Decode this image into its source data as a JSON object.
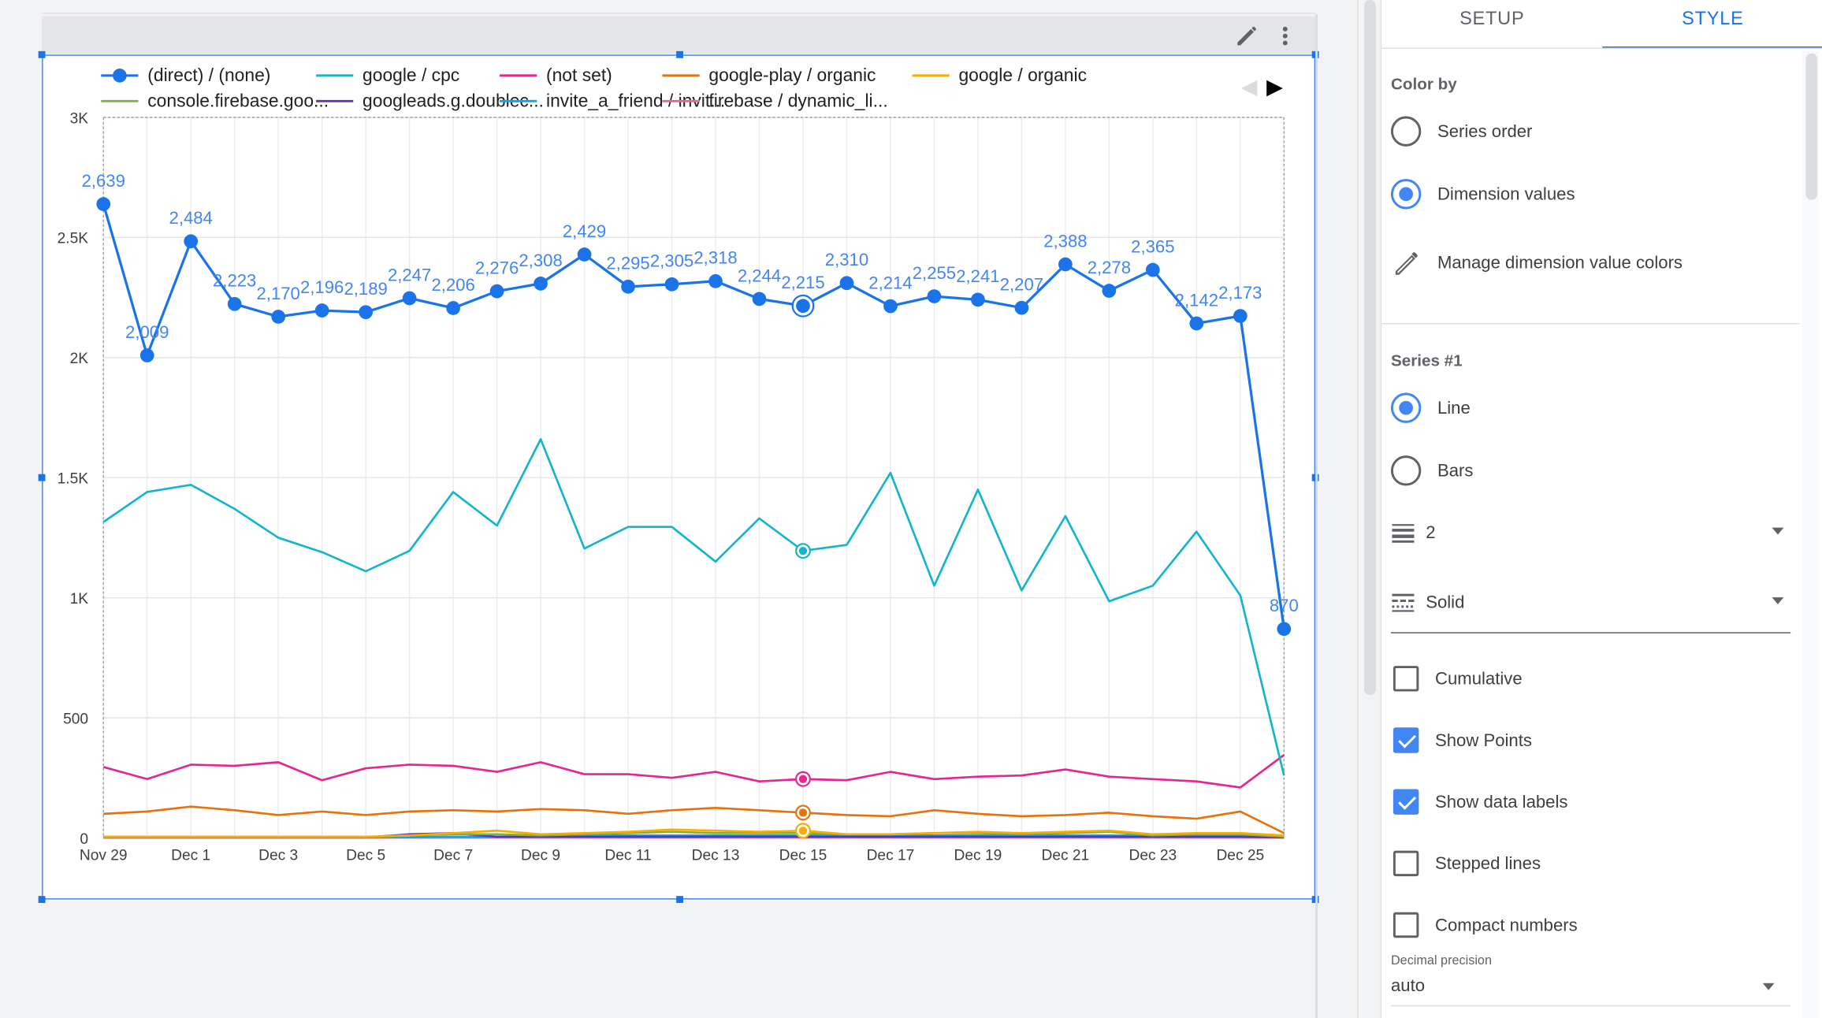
{
  "toolbar": {
    "edit_icon": "pencil-icon",
    "more_icon": "more-vert-icon"
  },
  "tabs": [
    {
      "label": "SETUP"
    },
    {
      "label": "STYLE"
    }
  ],
  "style_panel": {
    "color_by": {
      "title": "Color by",
      "options": [
        {
          "label": "Series order",
          "selected": false
        },
        {
          "label": "Dimension values",
          "selected": true
        }
      ],
      "manage_label": "Manage dimension value colors"
    },
    "series1": {
      "title": "Series #1",
      "options": [
        {
          "label": "Line",
          "selected": true
        },
        {
          "label": "Bars",
          "selected": false
        }
      ],
      "line_weight": "2",
      "line_style": "Solid",
      "checkboxes": [
        {
          "label": "Cumulative",
          "checked": false
        },
        {
          "label": "Show Points",
          "checked": true
        },
        {
          "label": "Show data labels",
          "checked": true
        },
        {
          "label": "Stepped lines",
          "checked": false
        },
        {
          "label": "Compact numbers",
          "checked": false
        }
      ],
      "decimal_precision_label": "Decimal precision",
      "decimal_precision_value": "auto"
    }
  },
  "chart_data": {
    "type": "line",
    "x": [
      "Nov 29",
      "Nov 30",
      "Dec 1",
      "Dec 2",
      "Dec 3",
      "Dec 4",
      "Dec 5",
      "Dec 6",
      "Dec 7",
      "Dec 8",
      "Dec 9",
      "Dec 10",
      "Dec 11",
      "Dec 12",
      "Dec 13",
      "Dec 14",
      "Dec 15",
      "Dec 16",
      "Dec 17",
      "Dec 18",
      "Dec 19",
      "Dec 20",
      "Dec 21",
      "Dec 22",
      "Dec 23",
      "Dec 24",
      "Dec 25",
      "Dec 26"
    ],
    "x_tick_labels": [
      "Nov 29",
      "Dec 1",
      "Dec 3",
      "Dec 5",
      "Dec 7",
      "Dec 9",
      "Dec 11",
      "Dec 13",
      "Dec 15",
      "Dec 17",
      "Dec 19",
      "Dec 21",
      "Dec 23",
      "Dec 25"
    ],
    "y_tick_labels": [
      "0",
      "500",
      "1K",
      "1.5K",
      "2K",
      "2.5K",
      "3K"
    ],
    "ylim": [
      0,
      3000
    ],
    "grid": true,
    "legend_position": "top",
    "legend_nav": {
      "prev_icon": "triangle-left-icon",
      "next_icon": "triangle-right-icon"
    },
    "highlight_index": 16,
    "series": [
      {
        "name": "(direct) / (none)",
        "color": "#1a73e8",
        "points": true,
        "labels": true,
        "values": [
          2639,
          2009,
          2484,
          2223,
          2170,
          2196,
          2189,
          2247,
          2206,
          2276,
          2308,
          2429,
          2295,
          2305,
          2318,
          2244,
          2215,
          2310,
          2214,
          2255,
          2241,
          2207,
          2388,
          2278,
          2365,
          2142,
          2173,
          870
        ],
        "value_labels": [
          "2,639",
          "2,009",
          "2,484",
          "2,223",
          "2,170",
          "2,196",
          "2,189",
          "2,247",
          "2,206",
          "2,276",
          "2,308",
          "2,429",
          "2,295",
          "2,305",
          "2,318",
          "2,244",
          "2,215",
          "2,310",
          "2,214",
          "2,255",
          "2,241",
          "2,207",
          "2,388",
          "2,278",
          "2,365",
          "2,142",
          "2,173",
          "870"
        ]
      },
      {
        "name": "google / cpc",
        "color": "#12b5cb",
        "values": [
          1315,
          1440,
          1470,
          1370,
          1250,
          1190,
          1110,
          1195,
          1440,
          1300,
          1660,
          1205,
          1295,
          1295,
          1150,
          1330,
          1195,
          1220,
          1520,
          1050,
          1450,
          1030,
          1340,
          985,
          1050,
          1275,
          1010,
          260
        ]
      },
      {
        "name": "(not set)",
        "color": "#e52592",
        "values": [
          295,
          245,
          305,
          300,
          315,
          240,
          290,
          305,
          300,
          275,
          315,
          265,
          265,
          250,
          275,
          235,
          245,
          240,
          275,
          245,
          255,
          260,
          285,
          255,
          245,
          235,
          210,
          345
        ]
      },
      {
        "name": "google-play / organic",
        "color": "#e8710a",
        "values": [
          100,
          110,
          130,
          115,
          95,
          110,
          95,
          110,
          115,
          110,
          120,
          115,
          100,
          115,
          125,
          115,
          105,
          95,
          90,
          115,
          100,
          90,
          95,
          105,
          90,
          80,
          110,
          20
        ]
      },
      {
        "name": "google / organic",
        "color": "#f9ab00",
        "values": [
          5,
          5,
          5,
          5,
          5,
          5,
          5,
          10,
          20,
          30,
          15,
          20,
          25,
          35,
          30,
          25,
          30,
          15,
          15,
          20,
          25,
          20,
          25,
          30,
          15,
          20,
          20,
          10
        ]
      },
      {
        "name": "console.firebase.goo...",
        "color": "#7cb342",
        "values": [
          3,
          3,
          3,
          3,
          3,
          3,
          3,
          10,
          15,
          15,
          10,
          15,
          20,
          25,
          20,
          20,
          20,
          15,
          15,
          20,
          20,
          15,
          20,
          25,
          10,
          15,
          15,
          5
        ]
      },
      {
        "name": "googleads.g.doublec...",
        "color": "#5e35b1",
        "values": [
          2,
          2,
          2,
          2,
          2,
          2,
          2,
          15,
          20,
          5,
          5,
          5,
          5,
          5,
          5,
          5,
          5,
          5,
          5,
          5,
          5,
          5,
          5,
          5,
          5,
          5,
          5,
          2
        ]
      },
      {
        "name": "invite_a_friend / invit...",
        "color": "#03a9f4",
        "values": [
          2,
          2,
          2,
          2,
          2,
          2,
          2,
          3,
          5,
          5,
          5,
          10,
          10,
          10,
          10,
          10,
          10,
          10,
          10,
          10,
          10,
          10,
          10,
          10,
          10,
          10,
          10,
          2
        ]
      },
      {
        "name": "firebase / dynamic_li...",
        "color": "#f06292",
        "values": [
          1,
          1,
          1,
          1,
          1,
          1,
          1,
          1,
          1,
          1,
          1,
          1,
          1,
          1,
          1,
          1,
          1,
          1,
          1,
          1,
          1,
          1,
          1,
          1,
          1,
          1,
          1,
          1
        ]
      }
    ]
  }
}
